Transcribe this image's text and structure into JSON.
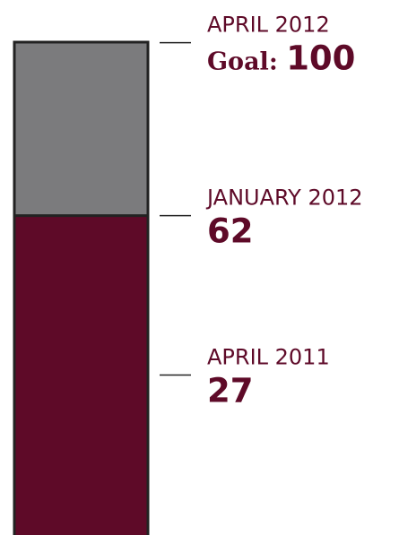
{
  "chart_data": {
    "type": "bar",
    "ylim": [
      0,
      100
    ],
    "colors": {
      "progress": "#5e0a28",
      "remaining": "#7b7b7d",
      "outline": "#222222",
      "text": "#5e0a28"
    },
    "markers": [
      {
        "period": "APRIL 2012",
        "prefix": "Goal:",
        "value": 100
      },
      {
        "period": "JANUARY 2012",
        "prefix": "",
        "value": 62
      },
      {
        "period": "APRIL 2011",
        "prefix": "",
        "value": 27
      }
    ],
    "fill_value": 62
  }
}
